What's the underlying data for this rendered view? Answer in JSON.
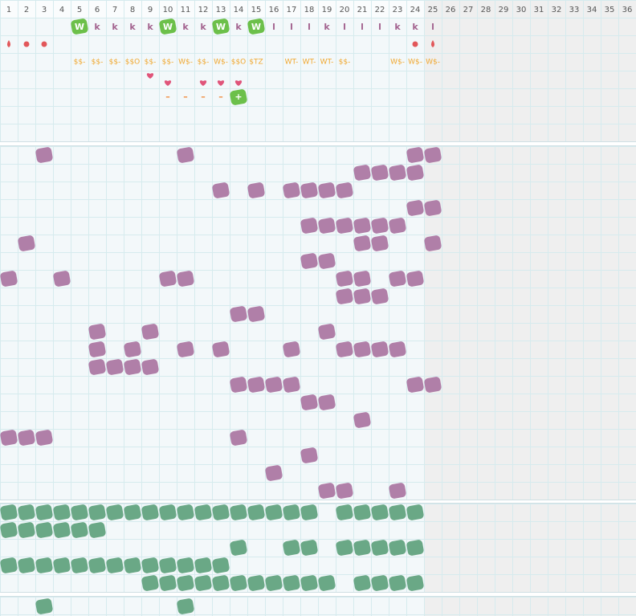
{
  "columns": [
    "1",
    "2",
    "3",
    "4",
    "5",
    "6",
    "7",
    "8",
    "9",
    "10",
    "11",
    "12",
    "13",
    "14",
    "15",
    "16",
    "17",
    "18",
    "19",
    "20",
    "21",
    "22",
    "23",
    "24",
    "25",
    "26",
    "27",
    "28",
    "29",
    "30",
    "31",
    "32",
    "33",
    "34",
    "35",
    "36"
  ],
  "rows": {
    "letters": [
      null,
      null,
      null,
      null,
      "W",
      "k",
      "k",
      "k",
      "k",
      "W",
      "k",
      "k",
      "W",
      "k",
      "W",
      "l",
      "l",
      "l",
      "k",
      "l",
      "l",
      "l",
      "k",
      "k",
      "l"
    ],
    "labels": [
      null,
      null,
      null,
      null,
      "$$-",
      "$$-",
      "$$-",
      "$$O",
      "$$-",
      "$$-",
      "W$-",
      "$$-",
      "W$-",
      "$$O",
      "$TZ",
      null,
      "WT-",
      "WT-",
      "WT-",
      "$$-",
      null,
      null,
      "W$-",
      "W$-",
      "W$-"
    ],
    "marks": [
      null,
      null,
      null,
      null,
      null,
      null,
      null,
      null,
      null,
      "–",
      "–",
      "–",
      "–",
      "+"
    ]
  }
}
